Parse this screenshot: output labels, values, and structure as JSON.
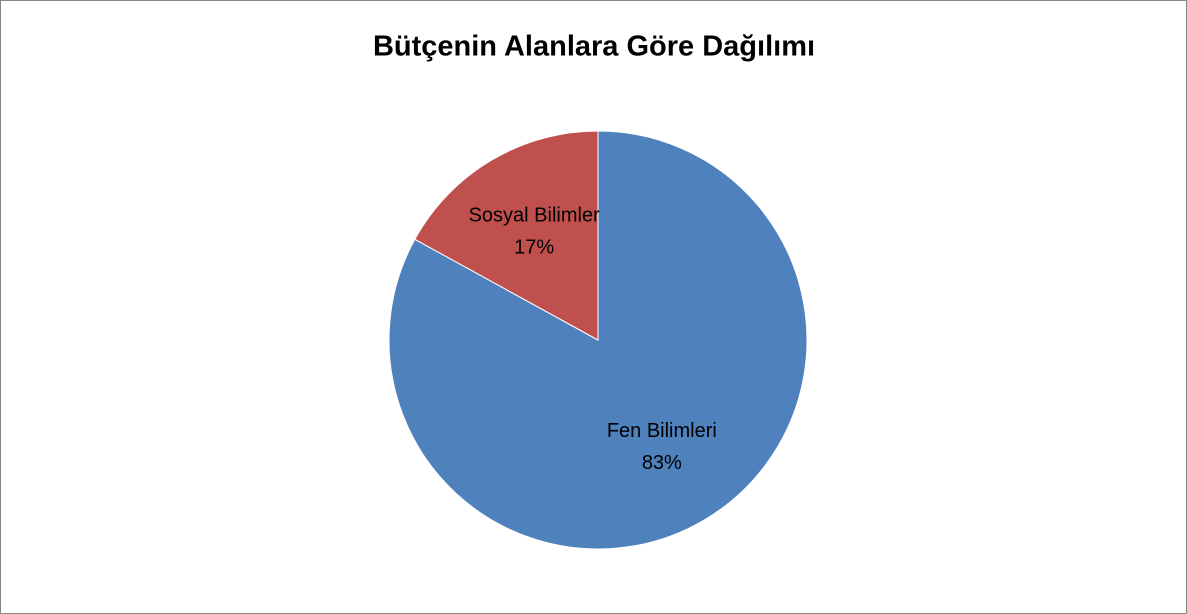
{
  "chart_data": {
    "type": "pie",
    "title": "Bütçenin Alanlara Göre Dağılımı",
    "categories": [
      "Fen Bilimleri",
      "Sosyal Bilimler"
    ],
    "values": [
      83,
      17
    ],
    "value_labels": [
      "83%",
      "17%"
    ],
    "colors": [
      "#4f81bd",
      "#c0504d"
    ]
  }
}
